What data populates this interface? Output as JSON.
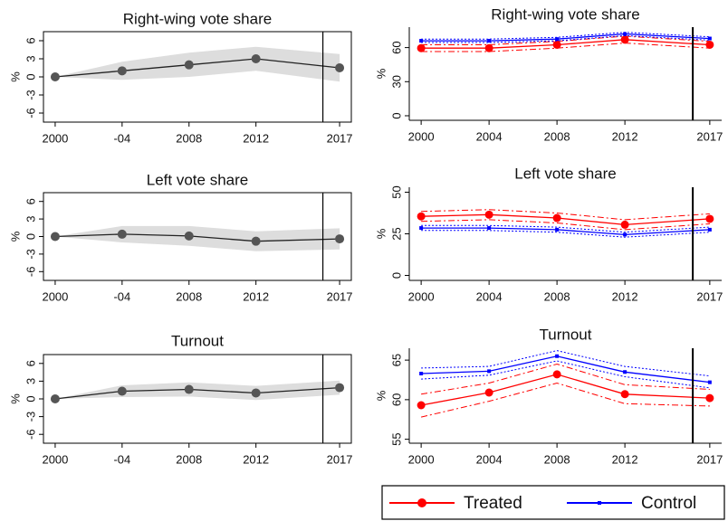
{
  "chart_data": [
    {
      "type": "line",
      "title": "Right-wing vote share",
      "ylabel": "%",
      "frame": true,
      "band": "area",
      "x": [
        2000,
        2004,
        2008,
        2012,
        2017
      ],
      "xlim": [
        1999.3,
        2017.7
      ],
      "xticks": [
        2000,
        {
          "value": 2004,
          "label": "-04"
        },
        2008,
        2012,
        2017
      ],
      "ylim": [
        -7.5,
        7.5
      ],
      "yticks": [
        -6,
        -3,
        0,
        3,
        6
      ],
      "vline": 2016,
      "series": [
        {
          "color": "#222222",
          "marker_color": "#555555",
          "band_color": "#dddddd",
          "values": [
            0,
            1,
            2,
            3,
            1.5
          ],
          "lower": [
            0,
            -0.5,
            0,
            1,
            -0.8
          ],
          "upper": [
            0,
            2.5,
            4,
            5,
            3.8
          ]
        }
      ]
    },
    {
      "type": "line",
      "title": "Left vote share",
      "ylabel": "%",
      "frame": true,
      "band": "area",
      "x": [
        2000,
        2004,
        2008,
        2012,
        2017
      ],
      "xlim": [
        1999.3,
        2017.7
      ],
      "xticks": [
        2000,
        {
          "value": 2004,
          "label": "-04"
        },
        2008,
        2012,
        2017
      ],
      "ylim": [
        -7.5,
        7.5
      ],
      "yticks": [
        -6,
        -3,
        0,
        3,
        6
      ],
      "vline": 2016,
      "series": [
        {
          "color": "#222222",
          "marker_color": "#555555",
          "band_color": "#dddddd",
          "values": [
            0,
            0.4,
            0.1,
            -0.8,
            -0.4
          ],
          "lower": [
            0,
            -1.0,
            -1.6,
            -2.5,
            -2.2
          ],
          "upper": [
            0,
            1.8,
            1.8,
            0.9,
            1.4
          ]
        }
      ]
    },
    {
      "type": "line",
      "title": "Turnout",
      "ylabel": "%",
      "frame": true,
      "band": "area",
      "x": [
        2000,
        2004,
        2008,
        2012,
        2017
      ],
      "xlim": [
        1999.3,
        2017.7
      ],
      "xticks": [
        2000,
        {
          "value": 2004,
          "label": "-04"
        },
        2008,
        2012,
        2017
      ],
      "ylim": [
        -7.5,
        7.5
      ],
      "yticks": [
        -6,
        -3,
        0,
        3,
        6
      ],
      "vline": 2016,
      "series": [
        {
          "color": "#222222",
          "marker_color": "#555555",
          "band_color": "#dddddd",
          "values": [
            0,
            1.3,
            1.6,
            1.0,
            1.9
          ],
          "lower": [
            0,
            0.3,
            0.4,
            -0.2,
            0.7
          ],
          "upper": [
            0,
            2.3,
            2.8,
            2.2,
            3.1
          ]
        }
      ]
    },
    {
      "type": "line",
      "title": "Right-wing vote share",
      "ylabel": "%",
      "frame": false,
      "band": "lines",
      "x": [
        2000,
        2004,
        2008,
        2012,
        2017
      ],
      "xlim": [
        1999.3,
        2017.7
      ],
      "xticks": [
        2000,
        2004,
        2008,
        2012,
        2017
      ],
      "ylim": [
        -4,
        78
      ],
      "yticks": [
        0,
        30,
        60
      ],
      "vline": 2016,
      "series": [
        {
          "name": "Treated",
          "color": "#ff0000",
          "marker": "circle",
          "dash": "7,3,2,3",
          "values": [
            59.5,
            59.5,
            62.5,
            67,
            62.5
          ],
          "lower": [
            56.5,
            56.5,
            59.5,
            64,
            59.5
          ],
          "upper": [
            62.5,
            62.5,
            65.5,
            70,
            65.5
          ]
        },
        {
          "name": "Control",
          "color": "#0000ff",
          "marker": "square",
          "dash": "2,2",
          "values": [
            66,
            66,
            67.5,
            72,
            68
          ],
          "lower": [
            64.5,
            64.5,
            66,
            70.5,
            66.5
          ],
          "upper": [
            67.5,
            67.5,
            69,
            73.5,
            69.5
          ]
        }
      ]
    },
    {
      "type": "line",
      "title": "Left vote share",
      "ylabel": "%",
      "frame": false,
      "band": "lines",
      "x": [
        2000,
        2004,
        2008,
        2012,
        2017
      ],
      "xlim": [
        1999.3,
        2017.7
      ],
      "xticks": [
        2000,
        2004,
        2008,
        2012,
        2017
      ],
      "ylim": [
        -3,
        53
      ],
      "yticks": [
        0,
        25,
        50
      ],
      "vline": 2016,
      "series": [
        {
          "color": "#ff0000",
          "marker": "circle",
          "dash": "7,3,2,3",
          "values": [
            35.5,
            36.5,
            34.5,
            30.5,
            34
          ],
          "lower": [
            32.5,
            33.5,
            31.5,
            27.5,
            31
          ],
          "upper": [
            38.5,
            39.5,
            37.5,
            33.5,
            37
          ]
        },
        {
          "color": "#0000ff",
          "marker": "square",
          "dash": "2,2",
          "values": [
            28.5,
            28.5,
            27.5,
            24.5,
            27.5
          ],
          "lower": [
            27,
            27,
            26,
            23,
            26
          ],
          "upper": [
            30,
            30,
            29,
            26,
            29
          ]
        }
      ]
    },
    {
      "type": "line",
      "title": "Turnout",
      "ylabel": "%",
      "frame": false,
      "band": "lines",
      "x": [
        2000,
        2004,
        2008,
        2012,
        2017
      ],
      "xlim": [
        1999.3,
        2017.7
      ],
      "xticks": [
        2000,
        2004,
        2008,
        2012,
        2017
      ],
      "ylim": [
        54.5,
        66.5
      ],
      "yticks": [
        55,
        60,
        65
      ],
      "vline": 2016,
      "series": [
        {
          "color": "#ff0000",
          "marker": "circle",
          "dash": "7,3,2,3",
          "values": [
            59.3,
            60.9,
            63.2,
            60.7,
            60.2
          ],
          "lower": [
            57.8,
            59.8,
            62.1,
            59.5,
            59.2
          ],
          "upper": [
            60.7,
            62.1,
            64.5,
            61.9,
            61.3
          ]
        },
        {
          "color": "#0000ff",
          "marker": "square",
          "dash": "2,2",
          "values": [
            63.3,
            63.6,
            65.5,
            63.5,
            62.2
          ],
          "lower": [
            62.6,
            63.1,
            64.9,
            62.9,
            61.5
          ],
          "upper": [
            64.0,
            64.2,
            66.2,
            64.2,
            63.0
          ]
        }
      ]
    }
  ]
}
